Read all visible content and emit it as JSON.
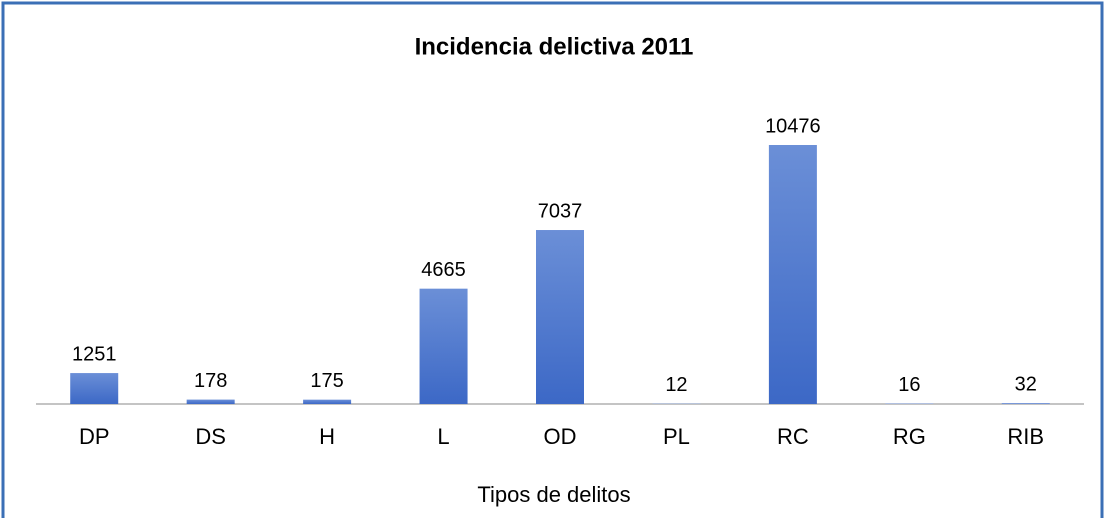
{
  "chart_data": {
    "type": "bar",
    "title": "Incidencia delictiva 2011",
    "x_label": "Tipos de delitos",
    "categories": [
      "DP",
      "DS",
      "H",
      "L",
      "OD",
      "PL",
      "RC",
      "RG",
      "RIB"
    ],
    "values": [
      1251,
      178,
      175,
      4665,
      7037,
      12,
      10476,
      16,
      32
    ],
    "color": "#3c68c6"
  }
}
